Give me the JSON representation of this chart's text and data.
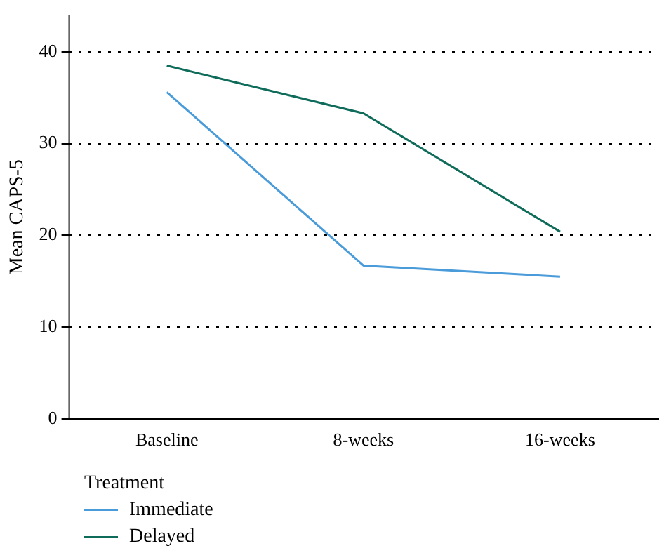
{
  "chart_data": {
    "type": "line",
    "ylabel": "Mean CAPS-5",
    "legend_title": "Treatment",
    "categories": [
      "Baseline",
      "8-weeks",
      "16-weeks"
    ],
    "series": [
      {
        "name": "Immediate",
        "color": "#4a9bd9",
        "values": [
          35.6,
          16.7,
          15.5
        ]
      },
      {
        "name": "Delayed",
        "color": "#0f6b5a",
        "values": [
          38.5,
          33.3,
          20.4
        ]
      }
    ],
    "ylim": [
      0,
      44
    ],
    "yticks": [
      0,
      10,
      20,
      30,
      40
    ],
    "grid": "y",
    "legend": "bottom left",
    "marker": "none",
    "line_style": "solid"
  }
}
